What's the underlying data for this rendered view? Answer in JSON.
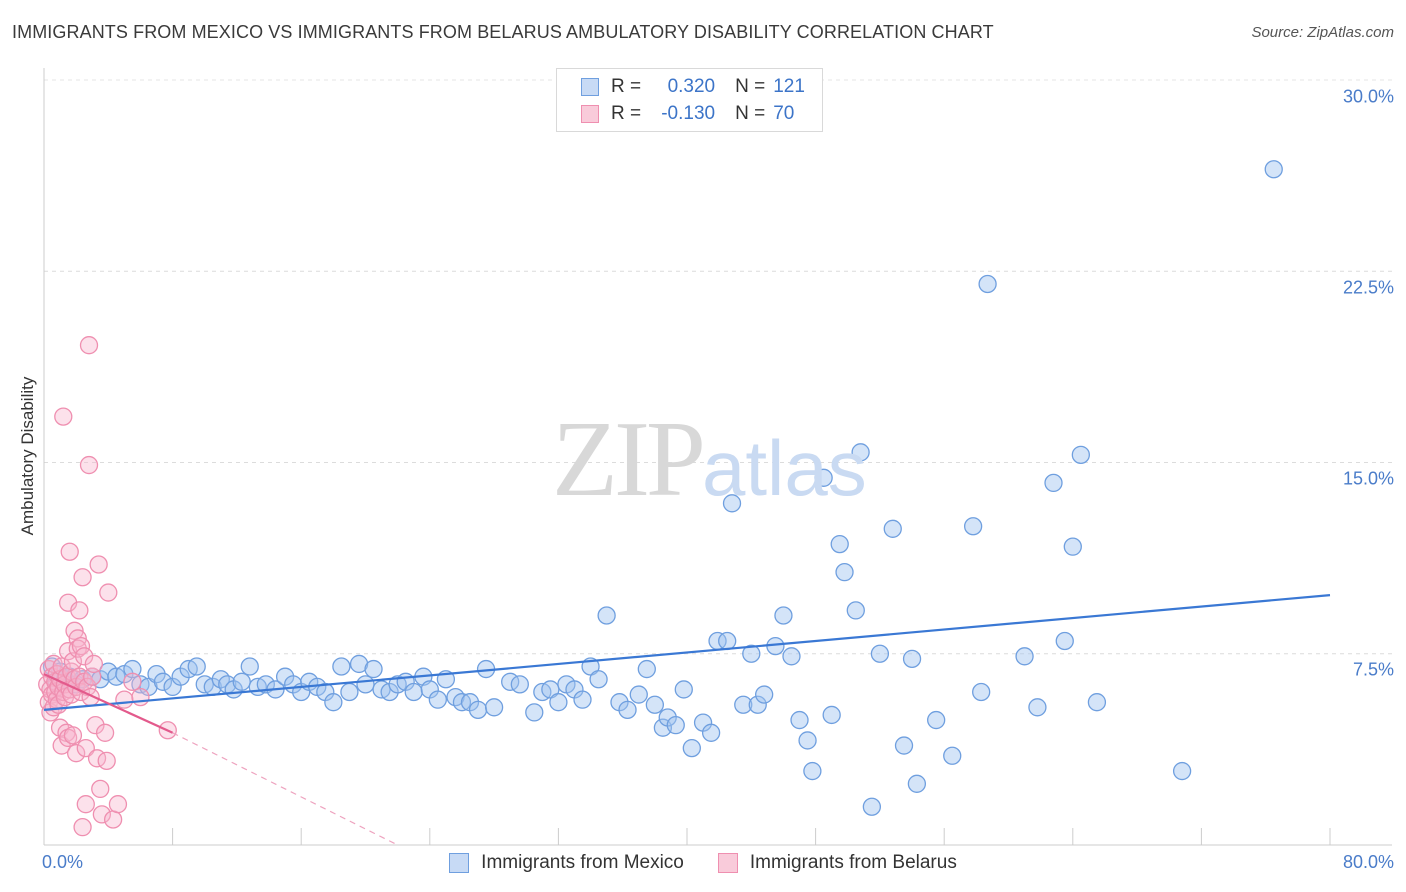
{
  "header": {
    "title": "IMMIGRANTS FROM MEXICO VS IMMIGRANTS FROM BELARUS AMBULATORY DISABILITY CORRELATION CHART",
    "source": "Source: ZipAtlas.com"
  },
  "watermark": {
    "zip": "ZIP",
    "atlas": "atlas"
  },
  "stats": {
    "mexico": {
      "r_label": "R =",
      "r_value": "0.320",
      "n_label": "N =",
      "n_value": "121",
      "color": "#6f9fdf"
    },
    "belarus": {
      "r_label": "R =",
      "r_value": "-0.130",
      "n_label": "N =",
      "n_value": "70",
      "color": "#ef8fb0"
    }
  },
  "chart_data": {
    "type": "scatter",
    "title": "IMMIGRANTS FROM MEXICO VS IMMIGRANTS FROM BELARUS AMBULATORY DISABILITY CORRELATION CHART",
    "ylabel": "Ambulatory Disability",
    "xlabel": "",
    "xlim": [
      0,
      80
    ],
    "ylim": [
      0,
      30
    ],
    "x_tick_labels": [
      "0.0%",
      "80.0%"
    ],
    "y_ticks": [
      7.5,
      15.0,
      22.5,
      30.0
    ],
    "y_tick_labels": [
      "7.5%",
      "15.0%",
      "22.5%",
      "30.0%"
    ],
    "legend": [
      "Immigrants from Mexico",
      "Immigrants from Belarus"
    ],
    "series": [
      {
        "name": "Immigrants from Mexico",
        "color": "#6f9fdf",
        "trend": {
          "x": [
            0,
            80
          ],
          "y": [
            5.3,
            9.8
          ]
        },
        "points": [
          [
            0.5,
            7.0
          ],
          [
            0.8,
            6.4
          ],
          [
            1.0,
            6.8
          ],
          [
            1.3,
            6.5
          ],
          [
            1.6,
            6.6
          ],
          [
            2.0,
            6.3
          ],
          [
            2.4,
            6.5
          ],
          [
            3.0,
            6.6
          ],
          [
            3.5,
            6.5
          ],
          [
            4.0,
            6.8
          ],
          [
            4.5,
            6.6
          ],
          [
            5.0,
            6.7
          ],
          [
            5.5,
            6.9
          ],
          [
            6.0,
            6.3
          ],
          [
            6.5,
            6.2
          ],
          [
            7.0,
            6.7
          ],
          [
            7.4,
            6.4
          ],
          [
            8.0,
            6.2
          ],
          [
            8.5,
            6.6
          ],
          [
            9.0,
            6.9
          ],
          [
            9.5,
            7.0
          ],
          [
            10.0,
            6.3
          ],
          [
            10.5,
            6.2
          ],
          [
            11.0,
            6.5
          ],
          [
            11.4,
            6.3
          ],
          [
            11.8,
            6.1
          ],
          [
            12.3,
            6.4
          ],
          [
            12.8,
            7.0
          ],
          [
            13.3,
            6.2
          ],
          [
            13.8,
            6.3
          ],
          [
            14.4,
            6.1
          ],
          [
            15.0,
            6.6
          ],
          [
            15.5,
            6.3
          ],
          [
            16.0,
            6.0
          ],
          [
            16.5,
            6.4
          ],
          [
            17.0,
            6.2
          ],
          [
            17.5,
            6.0
          ],
          [
            18.0,
            5.6
          ],
          [
            18.5,
            7.0
          ],
          [
            19.0,
            6.0
          ],
          [
            19.6,
            7.1
          ],
          [
            20.0,
            6.3
          ],
          [
            20.5,
            6.9
          ],
          [
            21.0,
            6.1
          ],
          [
            21.5,
            6.0
          ],
          [
            22.0,
            6.3
          ],
          [
            22.5,
            6.4
          ],
          [
            23.0,
            6.0
          ],
          [
            23.6,
            6.6
          ],
          [
            24.0,
            6.1
          ],
          [
            24.5,
            5.7
          ],
          [
            25.0,
            6.5
          ],
          [
            25.6,
            5.8
          ],
          [
            26.0,
            5.6
          ],
          [
            26.5,
            5.6
          ],
          [
            27.0,
            5.3
          ],
          [
            27.5,
            6.9
          ],
          [
            28.0,
            5.4
          ],
          [
            29.0,
            6.4
          ],
          [
            29.6,
            6.3
          ],
          [
            30.5,
            5.2
          ],
          [
            31.0,
            6.0
          ],
          [
            31.5,
            6.1
          ],
          [
            32.0,
            5.6
          ],
          [
            32.5,
            6.3
          ],
          [
            33.0,
            6.1
          ],
          [
            33.5,
            5.7
          ],
          [
            34.0,
            7.0
          ],
          [
            34.5,
            6.5
          ],
          [
            35.0,
            9.0
          ],
          [
            35.8,
            5.6
          ],
          [
            36.3,
            5.3
          ],
          [
            37.0,
            5.9
          ],
          [
            37.5,
            6.9
          ],
          [
            38.0,
            5.5
          ],
          [
            38.5,
            4.6
          ],
          [
            38.8,
            5.0
          ],
          [
            39.3,
            4.7
          ],
          [
            39.8,
            6.1
          ],
          [
            40.3,
            3.8
          ],
          [
            41.0,
            4.8
          ],
          [
            41.5,
            4.4
          ],
          [
            41.9,
            8.0
          ],
          [
            42.5,
            8.0
          ],
          [
            42.8,
            13.4
          ],
          [
            43.5,
            5.5
          ],
          [
            44.0,
            7.5
          ],
          [
            44.4,
            5.5
          ],
          [
            44.8,
            5.9
          ],
          [
            45.5,
            7.8
          ],
          [
            46.0,
            9.0
          ],
          [
            46.5,
            7.4
          ],
          [
            47.0,
            4.9
          ],
          [
            47.5,
            4.1
          ],
          [
            47.8,
            2.9
          ],
          [
            48.5,
            14.4
          ],
          [
            49.0,
            5.1
          ],
          [
            49.5,
            11.8
          ],
          [
            49.8,
            10.7
          ],
          [
            50.5,
            9.2
          ],
          [
            50.8,
            15.4
          ],
          [
            51.5,
            1.5
          ],
          [
            52.0,
            7.5
          ],
          [
            52.8,
            12.4
          ],
          [
            53.5,
            3.9
          ],
          [
            54.0,
            7.3
          ],
          [
            54.3,
            2.4
          ],
          [
            55.5,
            4.9
          ],
          [
            56.5,
            3.5
          ],
          [
            57.8,
            12.5
          ],
          [
            58.3,
            6.0
          ],
          [
            58.7,
            22.0
          ],
          [
            61.0,
            7.4
          ],
          [
            61.8,
            5.4
          ],
          [
            62.8,
            14.2
          ],
          [
            63.5,
            8.0
          ],
          [
            64.0,
            11.7
          ],
          [
            64.5,
            15.3
          ],
          [
            65.5,
            5.6
          ],
          [
            70.8,
            2.9
          ],
          [
            76.5,
            26.5
          ]
        ]
      },
      {
        "name": "Immigrants from Belarus",
        "color": "#ef8fb0",
        "trend": {
          "x": [
            0,
            8
          ],
          "y": [
            6.7,
            4.4
          ]
        },
        "trend_dashed": {
          "x": [
            8,
            22
          ],
          "y": [
            4.4,
            0.0
          ]
        },
        "points": [
          [
            0.2,
            6.3
          ],
          [
            0.3,
            6.9
          ],
          [
            0.3,
            5.6
          ],
          [
            0.4,
            6.1
          ],
          [
            0.4,
            5.2
          ],
          [
            0.5,
            6.6
          ],
          [
            0.5,
            5.9
          ],
          [
            0.6,
            7.1
          ],
          [
            0.6,
            5.4
          ],
          [
            0.7,
            6.4
          ],
          [
            0.7,
            6.0
          ],
          [
            0.8,
            6.7
          ],
          [
            0.8,
            5.7
          ],
          [
            0.9,
            6.2
          ],
          [
            0.9,
            5.5
          ],
          [
            1.0,
            6.5
          ],
          [
            1.0,
            4.6
          ],
          [
            1.1,
            7.0
          ],
          [
            1.1,
            3.9
          ],
          [
            1.2,
            6.0
          ],
          [
            1.2,
            16.8
          ],
          [
            1.3,
            6.3
          ],
          [
            1.3,
            5.8
          ],
          [
            1.4,
            6.6
          ],
          [
            1.4,
            4.4
          ],
          [
            1.5,
            7.6
          ],
          [
            1.5,
            4.2
          ],
          [
            1.5,
            9.5
          ],
          [
            1.6,
            6.1
          ],
          [
            1.6,
            11.5
          ],
          [
            1.7,
            6.8
          ],
          [
            1.7,
            5.9
          ],
          [
            1.8,
            7.2
          ],
          [
            1.8,
            4.3
          ],
          [
            1.9,
            6.5
          ],
          [
            1.9,
            8.4
          ],
          [
            2.0,
            6.2
          ],
          [
            2.0,
            3.6
          ],
          [
            2.1,
            8.1
          ],
          [
            2.1,
            7.7
          ],
          [
            2.2,
            9.2
          ],
          [
            2.2,
            6.6
          ],
          [
            2.3,
            7.8
          ],
          [
            2.3,
            6.0
          ],
          [
            2.4,
            10.5
          ],
          [
            2.4,
            0.7
          ],
          [
            2.5,
            7.4
          ],
          [
            2.5,
            6.4
          ],
          [
            2.6,
            3.8
          ],
          [
            2.6,
            1.6
          ],
          [
            2.7,
            6.2
          ],
          [
            2.8,
            19.6
          ],
          [
            2.8,
            14.9
          ],
          [
            2.9,
            5.8
          ],
          [
            3.0,
            6.6
          ],
          [
            3.1,
            7.1
          ],
          [
            3.2,
            4.7
          ],
          [
            3.3,
            3.4
          ],
          [
            3.4,
            11.0
          ],
          [
            3.5,
            2.2
          ],
          [
            3.6,
            1.2
          ],
          [
            3.8,
            4.4
          ],
          [
            3.9,
            3.3
          ],
          [
            4.0,
            9.9
          ],
          [
            4.3,
            1.0
          ],
          [
            4.6,
            1.6
          ],
          [
            5.0,
            5.7
          ],
          [
            5.5,
            6.4
          ],
          [
            6.0,
            5.8
          ],
          [
            7.7,
            4.5
          ]
        ]
      }
    ]
  },
  "axes": {
    "y_label": "Ambulatory Disability",
    "x_min_label": "0.0%",
    "x_max_label": "80.0%",
    "y_ticks": [
      {
        "label": "30.0%",
        "value": 30.0
      },
      {
        "label": "22.5%",
        "value": 22.5
      },
      {
        "label": "15.0%",
        "value": 15.0
      },
      {
        "label": "7.5%",
        "value": 7.5
      }
    ]
  },
  "legend": {
    "mexico": {
      "label": "Immigrants from Mexico",
      "color": "#6f9fdf"
    },
    "belarus": {
      "label": "Immigrants from Belarus",
      "color": "#ef8fb0"
    }
  }
}
